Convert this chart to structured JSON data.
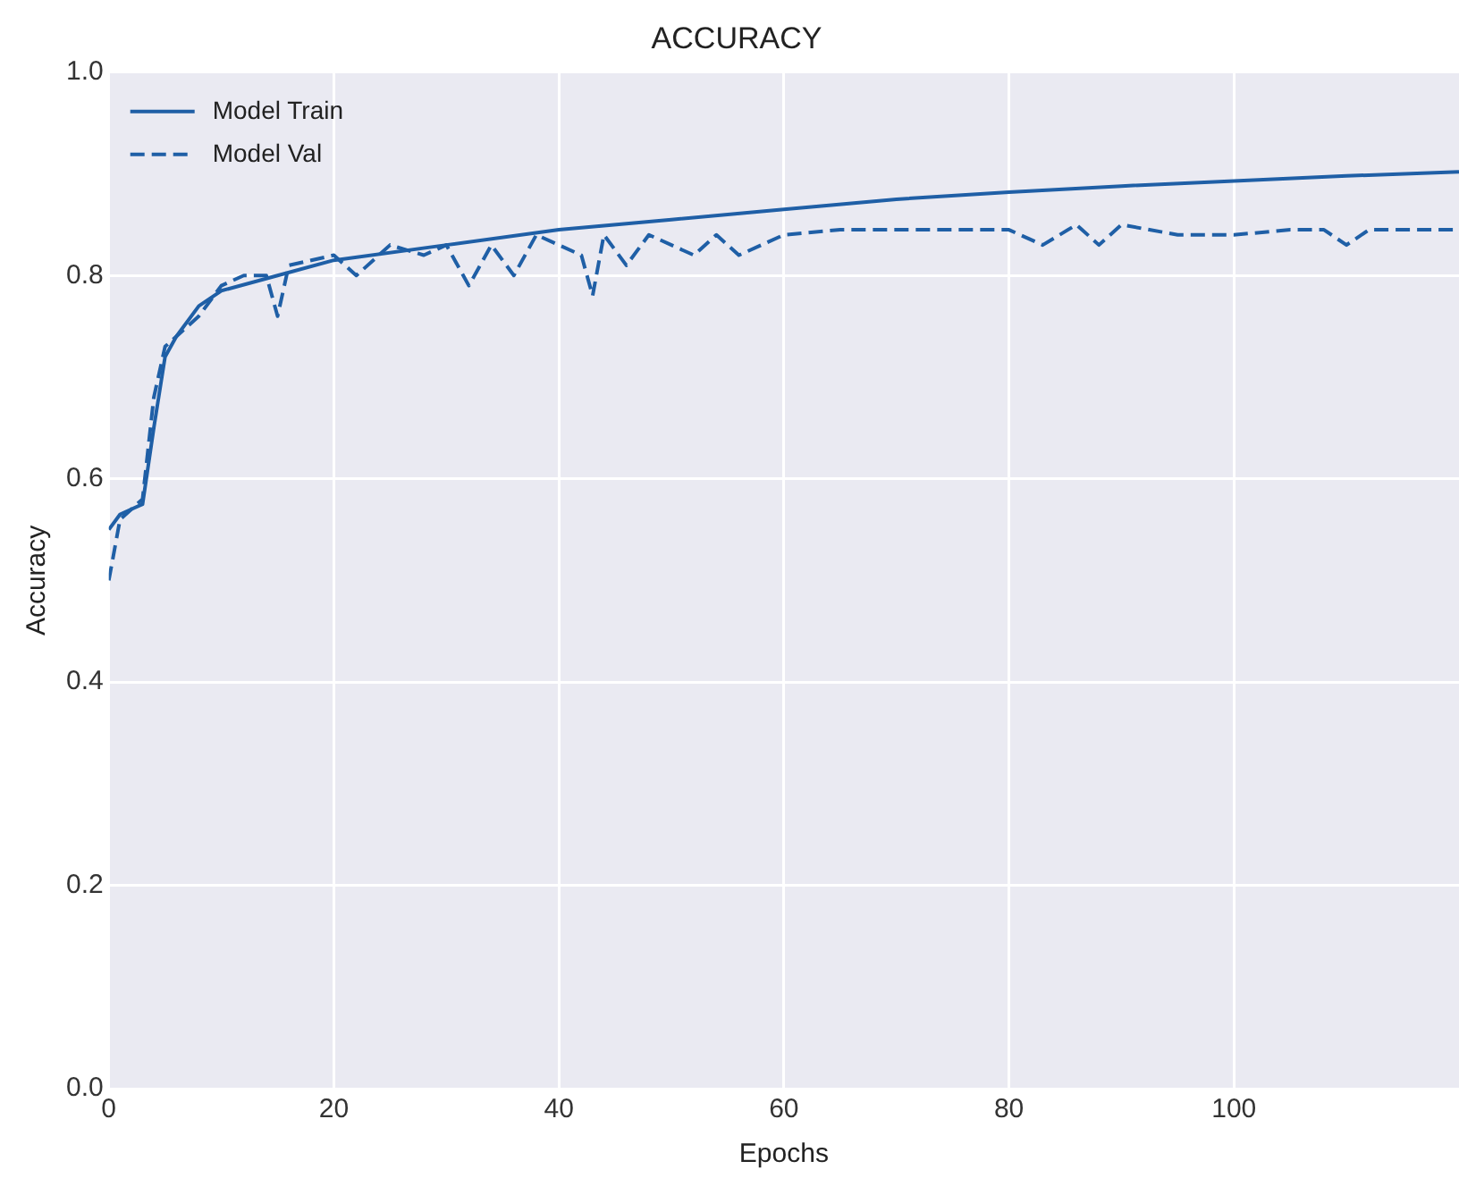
{
  "chart_data": {
    "type": "line",
    "title": "ACCURACY",
    "xlabel": "Epochs",
    "ylabel": "Accuracy",
    "xlim": [
      0,
      120
    ],
    "xticks": [
      0,
      20,
      40,
      60,
      80,
      100
    ],
    "ylim": [
      0,
      1
    ],
    "yticks": [
      {
        "value": 0,
        "label": "0.0"
      },
      0.2,
      0.4,
      0.6,
      0.8,
      {
        "value": 1,
        "label": "1.0"
      }
    ],
    "grid": true,
    "legend": "top left",
    "marker": "none",
    "series": [
      {
        "name": "Model Train",
        "color": "#1f5fa6",
        "line_style": "solid",
        "x": [
          0,
          1,
          2,
          3,
          4,
          5,
          6,
          8,
          10,
          15,
          20,
          30,
          40,
          50,
          60,
          70,
          80,
          90,
          100,
          110,
          120
        ],
        "values": [
          0.55,
          0.565,
          0.57,
          0.575,
          0.65,
          0.72,
          0.74,
          0.77,
          0.785,
          0.8,
          0.815,
          0.83,
          0.845,
          0.855,
          0.865,
          0.875,
          0.882,
          0.888,
          0.893,
          0.898,
          0.902
        ]
      },
      {
        "name": "Model Val",
        "color": "#1f5fa6",
        "line_style": "dashed",
        "x": [
          0,
          1,
          3,
          4,
          5,
          6,
          8,
          10,
          12,
          14,
          15,
          16,
          20,
          22,
          25,
          28,
          30,
          32,
          34,
          36,
          38,
          40,
          42,
          43,
          44,
          46,
          48,
          50,
          52,
          54,
          56,
          58,
          60,
          65,
          70,
          75,
          80,
          83,
          86,
          88,
          90,
          95,
          100,
          105,
          108,
          110,
          112,
          116,
          120
        ],
        "values": [
          0.5,
          0.56,
          0.58,
          0.68,
          0.73,
          0.74,
          0.76,
          0.79,
          0.8,
          0.8,
          0.76,
          0.81,
          0.82,
          0.8,
          0.83,
          0.82,
          0.83,
          0.79,
          0.83,
          0.8,
          0.84,
          0.83,
          0.82,
          0.78,
          0.84,
          0.81,
          0.84,
          0.83,
          0.82,
          0.84,
          0.82,
          0.83,
          0.84,
          0.845,
          0.845,
          0.845,
          0.845,
          0.83,
          0.85,
          0.83,
          0.85,
          0.84,
          0.84,
          0.845,
          0.845,
          0.83,
          0.845,
          0.845,
          0.845
        ]
      }
    ]
  }
}
